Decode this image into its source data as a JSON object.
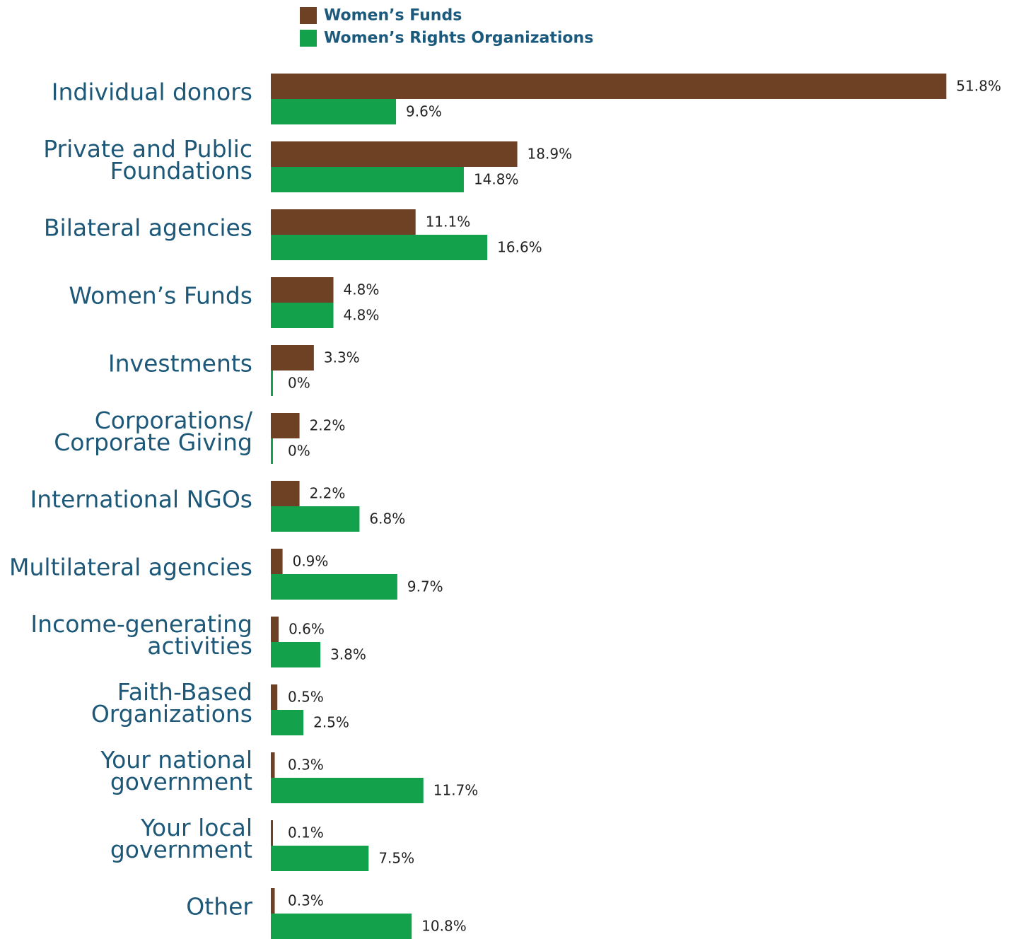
{
  "chart_data": {
    "type": "bar",
    "orientation": "horizontal",
    "categories": [
      "Individual donors",
      "Private and Public\nFoundations",
      "Bilateral agencies",
      "Women’s Funds",
      "Investments",
      "Corporations/\nCorporate Giving",
      "International NGOs",
      "Multilateral agencies",
      "Income-generating\nactivities",
      "Faith-Based\nOrganizations",
      "Your national\ngovernment",
      "Your local\ngovernment",
      "Other"
    ],
    "series": [
      {
        "name": "Women’s Funds",
        "color": "#6e4125",
        "values": [
          51.8,
          18.9,
          11.1,
          4.8,
          3.3,
          2.2,
          2.2,
          0.9,
          0.6,
          0.5,
          0.3,
          0.1,
          0.3
        ],
        "value_labels": [
          "51.8%",
          "18.9%",
          "11.1%",
          "4.8%",
          "3.3%",
          "2.2%",
          "2.2%",
          "0.9%",
          "0.6%",
          "0.5%",
          "0.3%",
          "0.1%",
          "0.3%"
        ]
      },
      {
        "name": "Women’s Rights Organizations",
        "color": "#13a14b",
        "values": [
          9.6,
          14.8,
          16.6,
          4.8,
          0,
          0,
          6.8,
          9.7,
          3.8,
          2.5,
          11.7,
          7.5,
          10.8
        ],
        "value_labels": [
          "9.6%",
          "14.8%",
          "16.6%",
          "4.8%",
          "0%",
          "0%",
          "6.8%",
          "9.7%",
          "3.8%",
          "2.5%",
          "11.7%",
          "7.5%",
          "10.8%"
        ]
      }
    ],
    "xlim": [
      0,
      52
    ],
    "legend": "top"
  }
}
